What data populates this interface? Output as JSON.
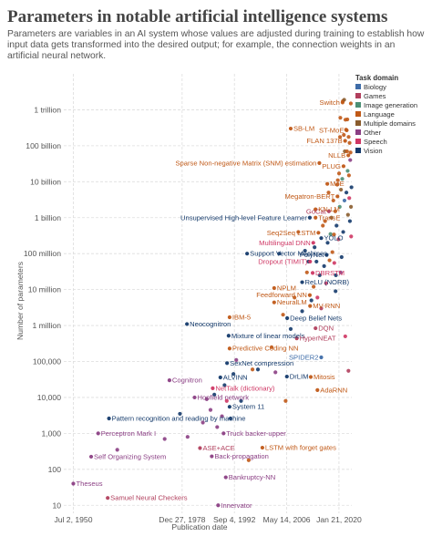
{
  "title": "Parameters in notable artificial intelligence systems",
  "subtitle": "Parameters are variables in an AI system whose values are adjusted during training to establish how input data gets transformed into the desired output; for example, the connection weights in an artificial neural network.",
  "chart_data": {
    "type": "scatter",
    "title": "Parameters in notable artificial intelligence systems",
    "xlabel": "Publication date",
    "ylabel": "Number of parameters",
    "y_scale": "log",
    "ylim": [
      6,
      10000000000000
    ],
    "xlim": [
      "1948-01-01",
      "2023-06-01"
    ],
    "grid": true,
    "y_ticks": [
      {
        "value": 10,
        "label": "10"
      },
      {
        "value": 100,
        "label": "100"
      },
      {
        "value": 1000,
        "label": "1,000"
      },
      {
        "value": 10000,
        "label": "10,000"
      },
      {
        "value": 100000,
        "label": "100,000"
      },
      {
        "value": 1000000,
        "label": "1 million"
      },
      {
        "value": 10000000,
        "label": "10 million"
      },
      {
        "value": 100000000,
        "label": "100 million"
      },
      {
        "value": 1000000000,
        "label": "1 billion"
      },
      {
        "value": 10000000000,
        "label": "10 billion"
      },
      {
        "value": 100000000000,
        "label": "100 billion"
      },
      {
        "value": 1000000000000,
        "label": "1 trillion"
      }
    ],
    "x_ticks": [
      {
        "value": "1950-07-02",
        "label": "Jul 2, 1950"
      },
      {
        "value": "1978-12-27",
        "label": "Dec 27, 1978"
      },
      {
        "value": "1992-09-04",
        "label": "Sep 4, 1992"
      },
      {
        "value": "2006-05-14",
        "label": "May 14, 2006"
      },
      {
        "value": "2020-01-21",
        "label": "Jan 21, 2020"
      }
    ],
    "legend": {
      "title": "Task domain",
      "placement": "top-right",
      "items": [
        {
          "name": "Biology",
          "color": "#3e6ca8"
        },
        {
          "name": "Games",
          "color": "#b13f5d"
        },
        {
          "name": "Image generation",
          "color": "#4c8f74"
        },
        {
          "name": "Language",
          "color": "#c05917"
        },
        {
          "name": "Multiple domains",
          "color": "#8a5c2d"
        },
        {
          "name": "Other",
          "color": "#8b3f84"
        },
        {
          "name": "Speech",
          "color": "#cf3764"
        },
        {
          "name": "Vision",
          "color": "#143a6b"
        }
      ]
    },
    "labeled_points": [
      {
        "name": "Theseus",
        "date": "1950-07-01",
        "params": 40,
        "domain": "Other"
      },
      {
        "name": "Samuel Neural Checkers",
        "date": "1959-07-01",
        "params": 16,
        "domain": "Games"
      },
      {
        "name": "Perceptron Mark I",
        "date": "1957-01-01",
        "params": 1000,
        "domain": "Other"
      },
      {
        "name": "Self Organizing System",
        "date": "1955-03-01",
        "params": 225,
        "domain": "Other"
      },
      {
        "name": "Pattern recognition and reading by machine",
        "date": "1959-11-01",
        "params": 2600,
        "domain": "Vision"
      },
      {
        "name": "Cognitron",
        "date": "1975-09-01",
        "params": 30000,
        "domain": "Other"
      },
      {
        "name": "Neocognitron",
        "date": "1980-04-01",
        "params": 1100000,
        "domain": "Vision"
      },
      {
        "name": "Innervator",
        "date": "1988-06-01",
        "params": 10,
        "domain": "Other"
      },
      {
        "name": "Bankruptcy-NN",
        "date": "1990-06-01",
        "params": 60,
        "domain": "Other"
      },
      {
        "name": "Back-propagation",
        "date": "1986-10-01",
        "params": 230,
        "domain": "Other"
      },
      {
        "name": "ASE+ACE",
        "date": "1983-09-01",
        "params": 390,
        "domain": "Games"
      },
      {
        "name": "Truck backer-upper",
        "date": "1989-11-01",
        "params": 1000,
        "domain": "Other"
      },
      {
        "name": "Hopfield network",
        "date": "1982-04-01",
        "params": 10000,
        "domain": "Other"
      },
      {
        "name": "NetTalk (dictionary)",
        "date": "1987-01-01",
        "params": 18000,
        "domain": "Speech"
      },
      {
        "name": "ALVINN",
        "date": "1989-01-01",
        "params": 36000,
        "domain": "Vision"
      },
      {
        "name": "System 11",
        "date": "1991-06-01",
        "params": 5500,
        "domain": "Vision"
      },
      {
        "name": "SexNet compression",
        "date": "1990-10-01",
        "params": 90000,
        "domain": "Vision"
      },
      {
        "name": "Predictive Coding NN",
        "date": "1991-06-01",
        "params": 230000,
        "domain": "Language"
      },
      {
        "name": "Mixture of linear models",
        "date": "1991-03-01",
        "params": 520000,
        "domain": "Vision"
      },
      {
        "name": "IBM-5",
        "date": "1991-06-01",
        "params": 1700000,
        "domain": "Language"
      },
      {
        "name": "LSTM with forget gates",
        "date": "2000-01-01",
        "params": 400,
        "domain": "Language"
      },
      {
        "name": "DrLIM",
        "date": "2006-06-01",
        "params": 38000,
        "domain": "Vision"
      },
      {
        "name": "Mitosis",
        "date": "2012-09-01",
        "params": 37000,
        "domain": "Language"
      },
      {
        "name": "AdaRNN",
        "date": "2014-06-01",
        "params": 16000,
        "domain": "Language"
      },
      {
        "name": "SPIDER2",
        "date": "2015-06-01",
        "params": 130000,
        "domain": "Biology"
      },
      {
        "name": "HyperNEAT",
        "date": "2009-01-01",
        "params": 440000,
        "domain": "Games"
      },
      {
        "name": "Deep Belief Nets",
        "date": "2006-07-01",
        "params": 1600000,
        "domain": "Vision"
      },
      {
        "name": "DQN",
        "date": "2013-12-01",
        "params": 840000,
        "domain": "Games"
      },
      {
        "name": "NeuralLM",
        "date": "2003-02-01",
        "params": 4400000,
        "domain": "Language"
      },
      {
        "name": "NPLM",
        "date": "2003-02-01",
        "params": 11000000,
        "domain": "Language"
      },
      {
        "name": "MV-RNN",
        "date": "2012-07-01",
        "params": 3500000,
        "domain": "Language"
      },
      {
        "name": "Feedforward NN",
        "date": "2012-06-01",
        "params": 7000000,
        "domain": "Language"
      },
      {
        "name": "ReLU (NORB)",
        "date": "2010-06-01",
        "params": 16000000,
        "domain": "Vision"
      },
      {
        "name": "DBRSTM",
        "date": "2013-03-01",
        "params": 29000000,
        "domain": "Speech"
      },
      {
        "name": "Dropout (TIMIT)",
        "date": "2012-07-01",
        "params": 60000000,
        "domain": "Speech"
      },
      {
        "name": "Support Vector Machines",
        "date": "1996-01-01",
        "params": 100000000,
        "domain": "Vision"
      },
      {
        "name": "PolyNet",
        "date": "2016-11-01",
        "params": 92000000,
        "domain": "Vision"
      },
      {
        "name": "Multilingual DNN",
        "date": "2013-05-01",
        "params": 200000000,
        "domain": "Speech"
      },
      {
        "name": "YOLO",
        "date": "2015-06-01",
        "params": 270000000,
        "domain": "Vision"
      },
      {
        "name": "Unsupervised High-level Feature Learner",
        "date": "2012-06-01",
        "params": 1000000000,
        "domain": "Vision"
      },
      {
        "name": "TransE",
        "date": "2013-12-01",
        "params": 1000000000,
        "domain": "Language"
      },
      {
        "name": "GoCat",
        "date": "2017-06-01",
        "params": 1500000000,
        "domain": "Games"
      },
      {
        "name": "Seq2Seq LSTM",
        "date": "2014-09-01",
        "params": 380000000,
        "domain": "Language"
      },
      {
        "name": "Megatron-BERT",
        "date": "2019-09-01",
        "params": 3900000000,
        "domain": "Language"
      },
      {
        "name": "MoE",
        "date": "2017-01-01",
        "params": 8700000000,
        "domain": "Language"
      },
      {
        "name": "KN-LM",
        "date": "2013-12-01",
        "params": 1700000000,
        "domain": "Language"
      },
      {
        "name": "PLUG",
        "date": "2021-04-01",
        "params": 27000000000,
        "domain": "Language"
      },
      {
        "name": "NLLB",
        "date": "2022-07-01",
        "params": 54000000000,
        "domain": "Language"
      },
      {
        "name": "Sparse Non-negative Matrix (SNM) estimation",
        "date": "2014-12-01",
        "params": 33000000000,
        "domain": "Language"
      },
      {
        "name": "FLAN 137B",
        "date": "2021-09-01",
        "params": 137000000000,
        "domain": "Language"
      },
      {
        "name": "SB-LM",
        "date": "2007-06-01",
        "params": 300000000000,
        "domain": "Language"
      },
      {
        "name": "ST-MoE",
        "date": "2022-02-01",
        "params": 269000000000,
        "domain": "Language"
      },
      {
        "name": "Switch",
        "date": "2021-01-01",
        "params": 1600000000000,
        "domain": "Language"
      }
    ],
    "unlabeled_points": [
      {
        "date": "1962-01-01",
        "params": 350,
        "domain": "Other"
      },
      {
        "date": "1974-06-01",
        "params": 700,
        "domain": "Other"
      },
      {
        "date": "1978-06-01",
        "params": 3500,
        "domain": "Vision"
      },
      {
        "date": "1980-06-01",
        "params": 800,
        "domain": "Other"
      },
      {
        "date": "1984-06-01",
        "params": 2000,
        "domain": "Other"
      },
      {
        "date": "1985-06-01",
        "params": 9000,
        "domain": "Other"
      },
      {
        "date": "1986-06-01",
        "params": 4500,
        "domain": "Other"
      },
      {
        "date": "1987-06-01",
        "params": 12000,
        "domain": "Vision"
      },
      {
        "date": "1988-03-01",
        "params": 1500,
        "domain": "Other"
      },
      {
        "date": "1989-06-01",
        "params": 3000,
        "domain": "Other"
      },
      {
        "date": "1990-02-01",
        "params": 22000,
        "domain": "Vision"
      },
      {
        "date": "1990-09-01",
        "params": 8000,
        "domain": "Speech"
      },
      {
        "date": "1991-09-01",
        "params": 2600,
        "domain": "Vision"
      },
      {
        "date": "1992-06-01",
        "params": 45000,
        "domain": "Vision"
      },
      {
        "date": "1993-03-01",
        "params": 110000,
        "domain": "Other"
      },
      {
        "date": "1994-06-01",
        "params": 8000,
        "domain": "Vision"
      },
      {
        "date": "1996-06-01",
        "params": 180,
        "domain": "Language"
      },
      {
        "date": "1997-06-01",
        "params": 60000,
        "domain": "Language"
      },
      {
        "date": "1998-11-01",
        "params": 60000,
        "domain": "Vision"
      },
      {
        "date": "2002-06-01",
        "params": 250000,
        "domain": "Language"
      },
      {
        "date": "2003-06-01",
        "params": 50000,
        "domain": "Other"
      },
      {
        "date": "2004-06-01",
        "params": 100000000,
        "domain": "Vision"
      },
      {
        "date": "2005-06-01",
        "params": 2000000,
        "domain": "Language"
      },
      {
        "date": "2006-02-01",
        "params": 8000,
        "domain": "Language"
      },
      {
        "date": "2007-06-01",
        "params": 800000,
        "domain": "Vision"
      },
      {
        "date": "2008-06-01",
        "params": 6000000,
        "domain": "Language"
      },
      {
        "date": "2009-06-01",
        "params": 400000000,
        "domain": "Language"
      },
      {
        "date": "2010-06-01",
        "params": 2500000,
        "domain": "Vision"
      },
      {
        "date": "2011-03-01",
        "params": 120000000,
        "domain": "Vision"
      },
      {
        "date": "2011-09-01",
        "params": 30000000,
        "domain": "Language"
      },
      {
        "date": "2012-02-01",
        "params": 60000000,
        "domain": "Vision"
      },
      {
        "date": "2012-11-01",
        "params": 5000000,
        "domain": "Vision"
      },
      {
        "date": "2013-06-01",
        "params": 12000000,
        "domain": "Language"
      },
      {
        "date": "2013-09-01",
        "params": 150000000,
        "domain": "Vision"
      },
      {
        "date": "2014-03-01",
        "params": 60000000,
        "domain": "Vision"
      },
      {
        "date": "2014-06-01",
        "params": 6000000,
        "domain": "Speech"
      },
      {
        "date": "2015-01-01",
        "params": 25000000,
        "domain": "Vision"
      },
      {
        "date": "2015-06-01",
        "params": 3000000,
        "domain": "Games"
      },
      {
        "date": "2015-11-01",
        "params": 600000000,
        "domain": "Language"
      },
      {
        "date": "2016-03-01",
        "params": 45000000,
        "domain": "Vision"
      },
      {
        "date": "2016-06-01",
        "params": 800000000,
        "domain": "Language"
      },
      {
        "date": "2016-09-01",
        "params": 15000000,
        "domain": "Speech"
      },
      {
        "date": "2017-02-01",
        "params": 200000000,
        "domain": "Vision"
      },
      {
        "date": "2017-05-01",
        "params": 5000000000,
        "domain": "Language"
      },
      {
        "date": "2017-08-01",
        "params": 65000000,
        "domain": "Language"
      },
      {
        "date": "2017-11-01",
        "params": 350000000,
        "domain": "Image generation"
      },
      {
        "date": "2018-02-01",
        "params": 1000000000,
        "domain": "Multiple domains"
      },
      {
        "date": "2018-05-01",
        "params": 110000000,
        "domain": "Language"
      },
      {
        "date": "2018-08-01",
        "params": 3000000000,
        "domain": "Language"
      },
      {
        "date": "2018-10-01",
        "params": 340000000,
        "domain": "Language"
      },
      {
        "date": "2019-02-01",
        "params": 1500000000,
        "domain": "Language"
      },
      {
        "date": "2019-04-01",
        "params": 25000000,
        "domain": "Vision"
      },
      {
        "date": "2019-06-01",
        "params": 600000000,
        "domain": "Vision"
      },
      {
        "date": "2019-08-01",
        "params": 8300000000,
        "domain": "Language"
      },
      {
        "date": "2019-10-01",
        "params": 11000000000,
        "domain": "Language"
      },
      {
        "date": "2019-12-01",
        "params": 250000000,
        "domain": "Games"
      },
      {
        "date": "2020-02-01",
        "params": 17000000000,
        "domain": "Language"
      },
      {
        "date": "2020-04-01",
        "params": 2000000000,
        "domain": "Image generation"
      },
      {
        "date": "2020-05-01",
        "params": 175000000000,
        "domain": "Language"
      },
      {
        "date": "2020-06-01",
        "params": 600000000000,
        "domain": "Language"
      },
      {
        "date": "2020-08-01",
        "params": 6000000000,
        "domain": "Multiple domains"
      },
      {
        "date": "2020-10-01",
        "params": 80000000,
        "domain": "Vision"
      },
      {
        "date": "2020-12-01",
        "params": 12000000000,
        "domain": "Image generation"
      },
      {
        "date": "2021-02-01",
        "params": 1750000000000,
        "domain": "Language"
      },
      {
        "date": "2021-03-01",
        "params": 400000000,
        "domain": "Vision"
      },
      {
        "date": "2021-05-01",
        "params": 200000000000,
        "domain": "Language"
      },
      {
        "date": "2021-06-01",
        "params": 1900000000000,
        "domain": "Multiple domains"
      },
      {
        "date": "2021-07-01",
        "params": 3000000000,
        "domain": "Biology"
      },
      {
        "date": "2021-08-01",
        "params": 70000000000,
        "domain": "Multiple domains"
      },
      {
        "date": "2021-10-01",
        "params": 530000000000,
        "domain": "Language"
      },
      {
        "date": "2021-12-01",
        "params": 280000000000,
        "domain": "Language"
      },
      {
        "date": "2022-01-01",
        "params": 5000000000,
        "domain": "Vision"
      },
      {
        "date": "2022-03-01",
        "params": 70000000000,
        "domain": "Language"
      },
      {
        "date": "2022-04-01",
        "params": 540000000000,
        "domain": "Language"
      },
      {
        "date": "2022-05-01",
        "params": 20000000000,
        "domain": "Image generation"
      },
      {
        "date": "2022-06-01",
        "params": 1200000000,
        "domain": "Multiple domains"
      },
      {
        "date": "2022-08-01",
        "params": 176000000000,
        "domain": "Language"
      },
      {
        "date": "2022-09-01",
        "params": 15000000000,
        "domain": "Language"
      },
      {
        "date": "2022-10-01",
        "params": 3500000000,
        "domain": "Speech"
      },
      {
        "date": "2022-11-01",
        "params": 120000000000,
        "domain": "Language"
      },
      {
        "date": "2022-12-01",
        "params": 800000000,
        "domain": "Vision"
      },
      {
        "date": "2023-01-01",
        "params": 40000000000,
        "domain": "Other"
      },
      {
        "date": "2023-02-01",
        "params": 65000000000,
        "domain": "Language"
      },
      {
        "date": "2023-03-01",
        "params": 1500000000000,
        "domain": "Language"
      },
      {
        "date": "2023-03-15",
        "params": 2000000000,
        "domain": "Multiple domains"
      },
      {
        "date": "2023-04-01",
        "params": 300000000,
        "domain": "Speech"
      },
      {
        "date": "2023-05-01",
        "params": 7000000000,
        "domain": "Vision"
      },
      {
        "date": "2020-07-01",
        "params": 30000000,
        "domain": "Other"
      },
      {
        "date": "2021-09-15",
        "params": 500000,
        "domain": "Speech"
      },
      {
        "date": "2022-07-15",
        "params": 55000,
        "domain": "Games"
      },
      {
        "date": "2019-03-01",
        "params": 9000000,
        "domain": "Vision"
      },
      {
        "date": "2018-11-01",
        "params": 55000000,
        "domain": "Speech"
      }
    ]
  }
}
